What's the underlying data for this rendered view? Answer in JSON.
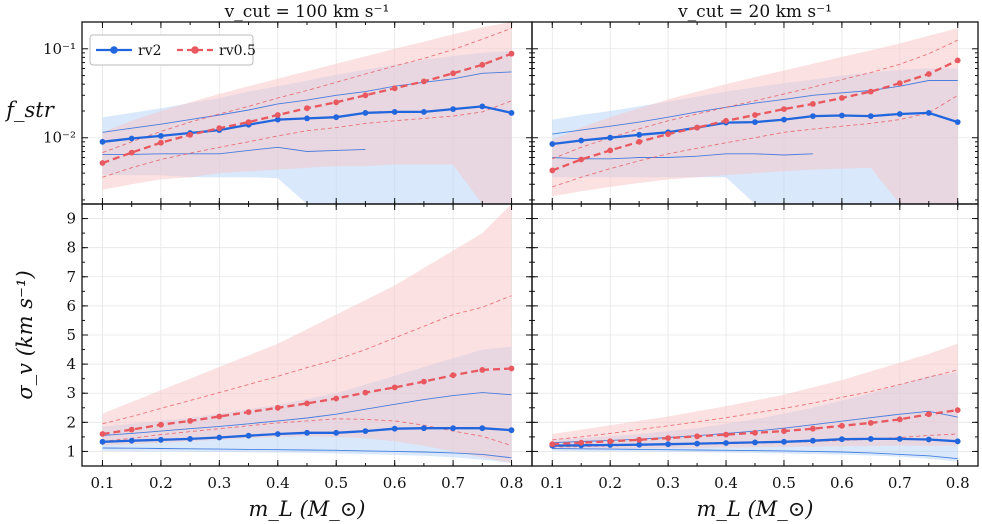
{
  "figure": {
    "col_titles": [
      "v_cut = 100 km s⁻¹",
      "v_cut = 20 km s⁻¹"
    ],
    "xlabel": "m_L (M_⊙)",
    "ylabel_top": "f_str",
    "ylabel_bottom": "σ_v (km s⁻¹)",
    "legend": [
      "rv2",
      "rv0.5"
    ],
    "colors": {
      "rv2": "#2266dd",
      "rv05": "#e8585e",
      "band_rv2": "#b9d5f5",
      "band_rv05": "#f7c4c6"
    }
  },
  "chart_data": [
    {
      "type": "line",
      "panel": "top-left",
      "title": "v_cut = 100 km s^-1",
      "yscale": "log",
      "ylim": [
        0.0018,
        0.2
      ],
      "xlim": [
        0.065,
        0.835
      ],
      "yticks": [
        0.01,
        0.1
      ],
      "ytick_labels": [
        "10⁻²",
        "10⁻¹"
      ],
      "xticks": [
        0.1,
        0.2,
        0.3,
        0.4,
        0.5,
        0.6,
        0.7,
        0.8
      ],
      "x": [
        0.1,
        0.15,
        0.2,
        0.25,
        0.3,
        0.35,
        0.4,
        0.45,
        0.5,
        0.55,
        0.6,
        0.65,
        0.7,
        0.75,
        0.8
      ],
      "series": [
        {
          "name": "rv2",
          "values": [
            0.009,
            0.0098,
            0.0105,
            0.0113,
            0.0122,
            0.014,
            0.016,
            0.0165,
            0.017,
            0.019,
            0.0195,
            0.0195,
            0.021,
            0.0225,
            0.019
          ],
          "upper": [
            0.0115,
            0.0128,
            0.0142,
            0.016,
            0.018,
            0.0205,
            0.024,
            0.0265,
            0.03,
            0.033,
            0.038,
            0.042,
            0.046,
            0.053,
            0.055
          ],
          "lower": [
            0.0065,
            0.0065,
            0.0066,
            0.0066,
            0.0066,
            0.0072,
            0.0078,
            0.007,
            0.0072,
            0.0074,
            null,
            null,
            null,
            null,
            null
          ],
          "band_hi": [
            0.017,
            0.019,
            0.0215,
            0.0245,
            0.028,
            0.033,
            0.038,
            0.044,
            0.051,
            0.058,
            0.066,
            0.075,
            0.083,
            0.09,
            0.095
          ],
          "band_lo": [
            0.0038,
            0.0038,
            0.0038,
            0.0036,
            0.0036,
            0.0036,
            0.0035,
            0.0018,
            0.0018,
            0.0018,
            0.0018,
            0.0018,
            0.0018,
            0.0018,
            0.0018
          ]
        },
        {
          "name": "rv0.5",
          "values": [
            0.0052,
            0.0068,
            0.0088,
            0.0108,
            0.0128,
            0.015,
            0.018,
            0.0215,
            0.025,
            0.03,
            0.036,
            0.043,
            0.053,
            0.066,
            0.088
          ],
          "upper": [
            0.0068,
            0.009,
            0.0118,
            0.015,
            0.0185,
            0.0225,
            0.028,
            0.034,
            0.042,
            0.052,
            0.064,
            0.078,
            0.098,
            0.128,
            0.17
          ],
          "lower": [
            0.0036,
            0.0046,
            0.0057,
            0.0067,
            0.0078,
            0.009,
            0.0105,
            0.012,
            0.013,
            0.0145,
            0.0155,
            0.0165,
            0.0175,
            0.0195,
            0.026
          ],
          "band_hi": [
            0.0115,
            0.0155,
            0.02,
            0.025,
            0.031,
            0.038,
            0.046,
            0.056,
            0.068,
            0.082,
            0.1,
            0.12,
            0.145,
            0.175,
            0.2
          ],
          "band_lo": [
            0.0026,
            0.003,
            0.0034,
            0.0036,
            0.004,
            0.0042,
            0.0044,
            0.0046,
            0.0048,
            0.0048,
            0.005,
            0.005,
            0.005,
            0.0018,
            0.0018
          ]
        }
      ]
    },
    {
      "type": "line",
      "panel": "top-right",
      "title": "v_cut = 20 km s^-1",
      "yscale": "log",
      "ylim": [
        0.0018,
        0.2
      ],
      "xlim": [
        0.065,
        0.835
      ],
      "yticks": [
        0.01,
        0.1
      ],
      "xticks": [
        0.1,
        0.2,
        0.3,
        0.4,
        0.5,
        0.6,
        0.7,
        0.8
      ],
      "x": [
        0.1,
        0.15,
        0.2,
        0.25,
        0.3,
        0.35,
        0.4,
        0.45,
        0.5,
        0.55,
        0.6,
        0.65,
        0.7,
        0.75,
        0.8
      ],
      "series": [
        {
          "name": "rv2",
          "values": [
            0.0085,
            0.0093,
            0.01,
            0.0108,
            0.0115,
            0.013,
            0.0148,
            0.015,
            0.016,
            0.0175,
            0.0178,
            0.0175,
            0.0185,
            0.019,
            0.015
          ],
          "upper": [
            0.011,
            0.0122,
            0.0135,
            0.015,
            0.017,
            0.0195,
            0.022,
            0.0245,
            0.027,
            0.03,
            0.032,
            0.034,
            0.038,
            0.044,
            0.044
          ],
          "lower": [
            0.006,
            0.0058,
            0.0058,
            0.006,
            0.006,
            0.0062,
            0.0066,
            0.0066,
            0.0064,
            0.0066,
            null,
            null,
            null,
            null,
            null
          ],
          "band_hi": [
            0.016,
            0.018,
            0.02,
            0.0225,
            0.0255,
            0.029,
            0.033,
            0.037,
            0.041,
            0.045,
            0.05,
            0.054,
            0.058,
            0.06,
            0.06
          ],
          "band_lo": [
            0.0036,
            0.0036,
            0.0036,
            0.0036,
            0.0036,
            0.0036,
            0.0036,
            0.0018,
            0.0018,
            0.0018,
            0.0018,
            0.0018,
            0.0018,
            0.0018,
            0.0018
          ]
        },
        {
          "name": "rv0.5",
          "values": [
            0.0043,
            0.0057,
            0.0072,
            0.009,
            0.011,
            0.013,
            0.0155,
            0.018,
            0.021,
            0.024,
            0.028,
            0.033,
            0.041,
            0.052,
            0.074
          ],
          "upper": [
            0.0058,
            0.0078,
            0.01,
            0.0126,
            0.0155,
            0.0185,
            0.022,
            0.026,
            0.031,
            0.037,
            0.045,
            0.054,
            0.067,
            0.088,
            0.125
          ],
          "lower": [
            0.0028,
            0.0036,
            0.0045,
            0.0055,
            0.0066,
            0.0076,
            0.0088,
            0.01,
            0.0115,
            0.0125,
            0.0135,
            0.0145,
            0.016,
            0.019,
            0.03
          ],
          "band_hi": [
            0.0095,
            0.013,
            0.017,
            0.0215,
            0.027,
            0.033,
            0.04,
            0.048,
            0.057,
            0.068,
            0.081,
            0.096,
            0.115,
            0.14,
            0.17
          ],
          "band_lo": [
            0.0022,
            0.0025,
            0.0028,
            0.0031,
            0.0034,
            0.0036,
            0.0038,
            0.004,
            0.0042,
            0.0044,
            0.0045,
            0.0046,
            0.0018,
            0.0018,
            0.0018
          ]
        }
      ]
    },
    {
      "type": "line",
      "panel": "bottom-left",
      "yscale": "linear",
      "ylim": [
        0.5,
        9.5
      ],
      "xlim": [
        0.065,
        0.835
      ],
      "yticks": [
        1,
        2,
        3,
        4,
        5,
        6,
        7,
        8,
        9
      ],
      "xticks": [
        0.1,
        0.2,
        0.3,
        0.4,
        0.5,
        0.6,
        0.7,
        0.8
      ],
      "x": [
        0.1,
        0.15,
        0.2,
        0.25,
        0.3,
        0.35,
        0.4,
        0.45,
        0.5,
        0.55,
        0.6,
        0.65,
        0.7,
        0.75,
        0.8
      ],
      "series": [
        {
          "name": "rv2",
          "values": [
            1.33,
            1.37,
            1.4,
            1.43,
            1.48,
            1.54,
            1.6,
            1.64,
            1.64,
            1.7,
            1.78,
            1.8,
            1.8,
            1.8,
            1.73
          ],
          "upper": [
            1.55,
            1.62,
            1.7,
            1.78,
            1.86,
            1.95,
            2.05,
            2.15,
            2.28,
            2.45,
            2.62,
            2.78,
            2.92,
            3.02,
            2.95
          ],
          "lower": [
            1.12,
            1.11,
            1.1,
            1.09,
            1.08,
            1.07,
            1.06,
            1.05,
            1.04,
            1.02,
            1.0,
            0.98,
            0.95,
            0.9,
            0.78
          ],
          "band_hi": [
            1.85,
            1.95,
            2.05,
            2.15,
            2.3,
            2.45,
            2.6,
            2.8,
            3.0,
            3.3,
            3.6,
            3.9,
            4.2,
            4.5,
            4.6
          ],
          "band_lo": [
            1.02,
            1.01,
            1.0,
            0.99,
            0.98,
            0.97,
            0.96,
            0.95,
            0.93,
            0.91,
            0.88,
            0.85,
            0.8,
            0.72,
            0.6
          ]
        },
        {
          "name": "rv0.5",
          "values": [
            1.6,
            1.75,
            1.92,
            2.05,
            2.2,
            2.35,
            2.5,
            2.65,
            2.82,
            3.02,
            3.2,
            3.4,
            3.62,
            3.8,
            3.85
          ],
          "upper": [
            1.95,
            2.2,
            2.48,
            2.75,
            3.02,
            3.3,
            3.58,
            3.88,
            4.15,
            4.5,
            4.9,
            5.3,
            5.7,
            5.95,
            6.35
          ],
          "lower": [
            1.35,
            1.45,
            1.58,
            1.68,
            1.78,
            1.88,
            1.98,
            2.05,
            2.12,
            2.1,
            2.05,
            1.9,
            1.7,
            1.52,
            1.2
          ],
          "band_hi": [
            2.3,
            2.7,
            3.1,
            3.5,
            3.9,
            4.3,
            4.7,
            5.2,
            5.7,
            6.2,
            6.7,
            7.3,
            7.9,
            8.5,
            9.5
          ],
          "band_lo": [
            1.2,
            1.25,
            1.3,
            1.35,
            1.4,
            1.45,
            1.5,
            1.52,
            1.5,
            1.45,
            1.35,
            1.2,
            1.0,
            0.8,
            0.6
          ]
        }
      ]
    },
    {
      "type": "line",
      "panel": "bottom-right",
      "yscale": "linear",
      "ylim": [
        0.5,
        9.5
      ],
      "xlim": [
        0.065,
        0.835
      ],
      "yticks": [
        1,
        2,
        3,
        4,
        5,
        6,
        7,
        8,
        9
      ],
      "xticks": [
        0.1,
        0.2,
        0.3,
        0.4,
        0.5,
        0.6,
        0.7,
        0.8
      ],
      "x": [
        0.1,
        0.15,
        0.2,
        0.25,
        0.3,
        0.35,
        0.4,
        0.45,
        0.5,
        0.55,
        0.6,
        0.65,
        0.7,
        0.75,
        0.8
      ],
      "series": [
        {
          "name": "rv2",
          "values": [
            1.2,
            1.21,
            1.22,
            1.23,
            1.25,
            1.27,
            1.29,
            1.31,
            1.33,
            1.37,
            1.42,
            1.43,
            1.43,
            1.41,
            1.35
          ],
          "upper": [
            1.3,
            1.34,
            1.38,
            1.42,
            1.48,
            1.54,
            1.62,
            1.7,
            1.8,
            1.92,
            2.04,
            2.16,
            2.28,
            2.38,
            2.18
          ],
          "lower": [
            1.1,
            1.09,
            1.08,
            1.07,
            1.06,
            1.05,
            1.04,
            1.03,
            1.02,
            1.0,
            0.98,
            0.95,
            0.9,
            0.85,
            0.75
          ],
          "band_hi": [
            1.4,
            1.46,
            1.52,
            1.6,
            1.7,
            1.8,
            1.95,
            2.1,
            2.3,
            2.5,
            2.75,
            3.0,
            3.3,
            3.6,
            3.7
          ],
          "band_lo": [
            1.02,
            1.01,
            1.0,
            0.99,
            0.98,
            0.97,
            0.96,
            0.95,
            0.93,
            0.91,
            0.89,
            0.86,
            0.82,
            0.75,
            0.65
          ]
        },
        {
          "name": "rv0.5",
          "values": [
            1.25,
            1.3,
            1.35,
            1.4,
            1.46,
            1.52,
            1.58,
            1.64,
            1.7,
            1.78,
            1.88,
            1.98,
            2.1,
            2.28,
            2.42
          ],
          "upper": [
            1.4,
            1.5,
            1.62,
            1.75,
            1.88,
            2.02,
            2.16,
            2.32,
            2.48,
            2.66,
            2.86,
            3.06,
            3.3,
            3.55,
            3.8
          ],
          "lower": [
            1.15,
            1.17,
            1.19,
            1.21,
            1.23,
            1.25,
            1.27,
            1.29,
            1.31,
            1.34,
            1.38,
            1.42,
            1.48,
            1.55,
            1.6
          ],
          "band_hi": [
            1.6,
            1.75,
            1.9,
            2.05,
            2.2,
            2.38,
            2.55,
            2.75,
            2.95,
            3.2,
            3.45,
            3.75,
            4.05,
            4.35,
            4.7
          ],
          "band_lo": [
            1.08,
            1.09,
            1.1,
            1.11,
            1.12,
            1.13,
            1.14,
            1.15,
            1.16,
            1.17,
            1.18,
            1.19,
            1.2,
            1.2,
            1.2
          ]
        }
      ]
    }
  ]
}
